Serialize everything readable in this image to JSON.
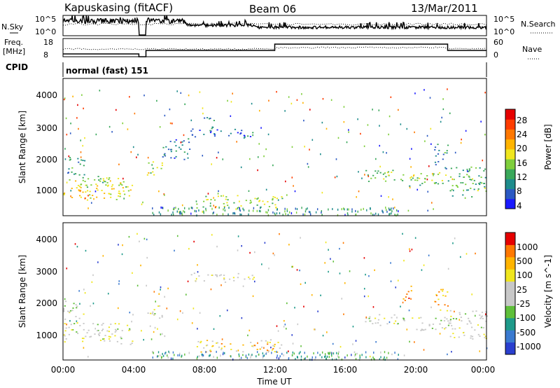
{
  "header": {
    "station": "Kapuskasing (fitACF)",
    "beam": "Beam 06",
    "date": "13/Mar/2011"
  },
  "top_panels": {
    "nsky_label": "N.Sky",
    "nsearch_label": "N.Search",
    "noise_ticks": [
      "10^5",
      "10^0"
    ],
    "freq_label": "Freq.",
    "freq_unit": "[MHz]",
    "freq_ticks": [
      "18",
      "8"
    ],
    "nave_label": "Nave",
    "nave_ticks": [
      "60",
      "0"
    ],
    "cpid_label": "CPID",
    "cpid_value": "normal (fast) 151"
  },
  "chart_data": [
    {
      "type": "heatmap",
      "name": "power",
      "ylabel": "Slant Range [km]",
      "yticks": [
        "4000",
        "3000",
        "2000",
        "1000"
      ],
      "ylim": [
        180,
        4600
      ],
      "xlim": [
        0,
        24
      ],
      "colorbar": {
        "label": "Power [dB]",
        "ticks": [
          "28",
          "24",
          "20",
          "16",
          "12",
          "8",
          "4"
        ],
        "range": [
          0,
          30
        ],
        "colors": [
          "#1a1aff",
          "#2b59c3",
          "#1e8c8c",
          "#3aa85a",
          "#7fcf3c",
          "#f0e61e",
          "#ffb400",
          "#ff7800",
          "#ff3c00",
          "#e60000"
        ]
      },
      "features": [
        {
          "t0": 0.0,
          "t1": 3.9,
          "r0": 700,
          "r1": 1400,
          "level": 0.55
        },
        {
          "t0": 0.0,
          "t1": 1.2,
          "r0": 1500,
          "r1": 2100,
          "level": 0.25
        },
        {
          "t0": 0.9,
          "t1": 2.6,
          "r0": 1100,
          "r1": 1500,
          "level": 0.4
        },
        {
          "t0": 4.7,
          "t1": 5.6,
          "r0": 1500,
          "r1": 2000,
          "level": 0.45
        },
        {
          "t0": 5.6,
          "t1": 7.2,
          "r0": 2000,
          "r1": 2700,
          "level": 0.2
        },
        {
          "t0": 7.2,
          "t1": 10.8,
          "r0": 2700,
          "r1": 3000,
          "level": 0.15
        },
        {
          "t0": 7.8,
          "t1": 8.6,
          "r0": 3000,
          "r1": 3400,
          "level": 0.2
        },
        {
          "t0": 7.5,
          "t1": 12.4,
          "r0": 450,
          "r1": 850,
          "level": 0.45
        },
        {
          "t0": 17.0,
          "t1": 19.4,
          "r0": 1300,
          "r1": 1700,
          "level": 0.45
        },
        {
          "t0": 19.6,
          "t1": 21.8,
          "r0": 1150,
          "r1": 1600,
          "level": 0.4
        },
        {
          "t0": 21.0,
          "t1": 21.8,
          "r0": 1700,
          "r1": 2500,
          "level": 0.25
        },
        {
          "t0": 21.8,
          "t1": 24.0,
          "r0": 800,
          "r1": 1800,
          "level": 0.35
        }
      ]
    },
    {
      "type": "heatmap",
      "name": "velocity",
      "ylabel": "Slant Range [km]",
      "xlabel": "Time UT",
      "yticks": [
        "4000",
        "3000",
        "2000",
        "1000"
      ],
      "xticks": [
        "00:00",
        "04:00",
        "08:00",
        "12:00",
        "16:00",
        "20:00",
        "00:00"
      ],
      "ylim": [
        180,
        4600
      ],
      "xlim": [
        0,
        24
      ],
      "colorbar": {
        "label": "Velocity [m s^-1]",
        "ticks": [
          "1000",
          "500",
          "100",
          "25",
          "-25",
          "-100",
          "-500",
          "-1000"
        ],
        "colors": [
          "#2a3fcf",
          "#3a7ad0",
          "#1e9a8a",
          "#5fbf3a",
          "#c8c8c8",
          "#c8c8c8",
          "#f0e61e",
          "#ffb400",
          "#ff7800",
          "#e60000"
        ]
      },
      "features": [
        {
          "t0": 0.0,
          "t1": 3.9,
          "r0": 700,
          "r1": 1400,
          "level": 0.5
        },
        {
          "t0": 0.0,
          "t1": 1.2,
          "r0": 1500,
          "r1": 2100,
          "level": 0.5
        },
        {
          "t0": 4.7,
          "t1": 5.6,
          "r0": 1500,
          "r1": 2000,
          "level": 0.5
        },
        {
          "t0": 7.2,
          "t1": 10.8,
          "r0": 2700,
          "r1": 3000,
          "level": 0.55
        },
        {
          "t0": 7.5,
          "t1": 12.4,
          "r0": 450,
          "r1": 850,
          "level": 0.7
        },
        {
          "t0": 17.0,
          "t1": 19.4,
          "r0": 1300,
          "r1": 1700,
          "level": 0.5
        },
        {
          "t0": 19.2,
          "t1": 19.8,
          "r0": 2100,
          "r1": 2600,
          "level": 0.85
        },
        {
          "t0": 19.6,
          "t1": 21.8,
          "r0": 1150,
          "r1": 1600,
          "level": 0.5
        },
        {
          "t0": 21.0,
          "t1": 21.8,
          "r0": 1700,
          "r1": 2500,
          "level": 0.8
        },
        {
          "t0": 21.8,
          "t1": 24.0,
          "r0": 800,
          "r1": 1800,
          "level": 0.5
        }
      ]
    }
  ]
}
